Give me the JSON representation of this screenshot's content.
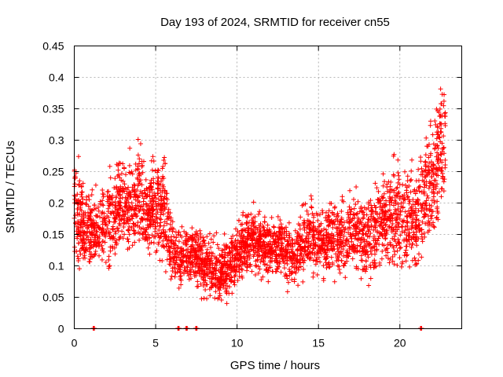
{
  "chart_data": {
    "type": "scatter",
    "title": "Day 193 of 2024, SRMTID for receiver cn55",
    "xlabel": "GPS time / hours",
    "ylabel": "SRMTID / TECUs",
    "xlim": [
      0,
      23.8
    ],
    "ylim": [
      0,
      0.45
    ],
    "x_ticks": [
      0,
      5,
      10,
      15,
      20
    ],
    "x_tick_labels": [
      "0",
      "5",
      "10",
      "15",
      "20"
    ],
    "y_ticks": [
      0,
      0.05,
      0.1,
      0.15,
      0.2,
      0.25,
      0.3,
      0.35,
      0.4,
      0.45
    ],
    "y_tick_labels": [
      "0",
      "0.05",
      "0.1",
      "0.15",
      "0.2",
      "0.25",
      "0.3",
      "0.35",
      "0.4",
      "0.45"
    ],
    "grid": true,
    "marker": "+",
    "series": [
      {
        "name": "SRMTID",
        "color": "#ff0000",
        "envelope_hours": [
          0,
          0.5,
          1,
          1.5,
          2,
          2.5,
          3,
          3.5,
          4,
          4.5,
          5,
          5.5,
          6,
          6.5,
          7,
          7.5,
          8,
          8.5,
          9,
          9.5,
          10,
          10.5,
          11,
          11.5,
          12,
          12.5,
          13,
          13.5,
          14,
          14.5,
          15,
          15.5,
          16,
          16.5,
          17,
          17.5,
          18,
          18.5,
          19,
          19.5,
          20,
          20.5,
          21,
          21.5,
          22,
          22.5,
          22.8
        ],
        "center": [
          0.2,
          0.17,
          0.15,
          0.16,
          0.17,
          0.18,
          0.2,
          0.19,
          0.21,
          0.18,
          0.2,
          0.19,
          0.12,
          0.11,
          0.12,
          0.12,
          0.1,
          0.1,
          0.09,
          0.1,
          0.12,
          0.14,
          0.14,
          0.13,
          0.13,
          0.13,
          0.12,
          0.11,
          0.14,
          0.15,
          0.14,
          0.14,
          0.15,
          0.14,
          0.15,
          0.16,
          0.14,
          0.16,
          0.17,
          0.18,
          0.19,
          0.17,
          0.17,
          0.22,
          0.23,
          0.29,
          0.3
        ],
        "spread": [
          0.07,
          0.06,
          0.05,
          0.05,
          0.06,
          0.07,
          0.07,
          0.06,
          0.07,
          0.06,
          0.07,
          0.08,
          0.04,
          0.04,
          0.04,
          0.04,
          0.04,
          0.04,
          0.04,
          0.04,
          0.04,
          0.04,
          0.04,
          0.04,
          0.04,
          0.04,
          0.04,
          0.04,
          0.05,
          0.05,
          0.05,
          0.05,
          0.05,
          0.05,
          0.05,
          0.06,
          0.06,
          0.06,
          0.06,
          0.07,
          0.08,
          0.07,
          0.07,
          0.08,
          0.08,
          0.09,
          0.08
        ],
        "points_per_hour": 150,
        "seed": 193,
        "zero_value_hours": [
          1.2,
          6.4,
          6.9,
          7.5,
          21.3
        ]
      }
    ]
  }
}
